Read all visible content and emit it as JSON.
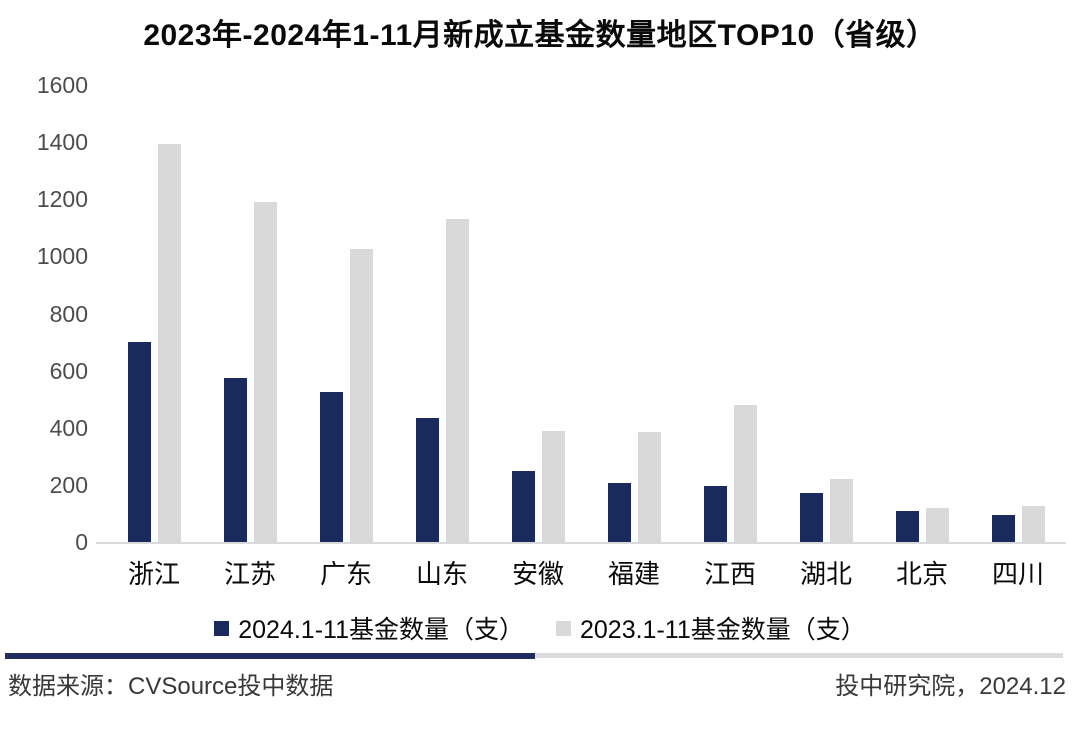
{
  "title": "2023年-2024年1-11月新成立基金数量地区TOP10（省级）",
  "chart_data": {
    "type": "bar",
    "title": "2023年-2024年1-11月新成立基金数量地区TOP10（省级）",
    "categories": [
      "浙江",
      "江苏",
      "广东",
      "山东",
      "安徽",
      "福建",
      "江西",
      "湖北",
      "北京",
      "四川"
    ],
    "series": [
      {
        "name": "2024.1-11基金数量（支）",
        "color": "#1b2a5c",
        "values": [
          700,
          575,
          525,
          435,
          250,
          205,
          195,
          170,
          110,
          95
        ]
      },
      {
        "name": "2023.1-11基金数量（支）",
        "color": "#d9d9d9",
        "values": [
          1395,
          1190,
          1025,
          1130,
          390,
          385,
          480,
          220,
          120,
          125
        ]
      }
    ],
    "xlabel": "",
    "ylabel": "",
    "ylim": [
      0,
      1600
    ],
    "yticks": [
      0,
      200,
      400,
      600,
      800,
      1000,
      1200,
      1400,
      1600
    ],
    "grid": false,
    "legend_position": "bottom"
  },
  "footer": {
    "source_left": "数据来源：CVSource投中数据",
    "source_right": "投中研究院，2024.12"
  },
  "colors": {
    "series_2024": "#1b2a5c",
    "series_2023": "#d9d9d9",
    "axis_line": "#d9d9d9",
    "tick_label": "#4d4d4d",
    "divider_left": "#1f2d5c",
    "divider_right": "#dcdcdc"
  }
}
